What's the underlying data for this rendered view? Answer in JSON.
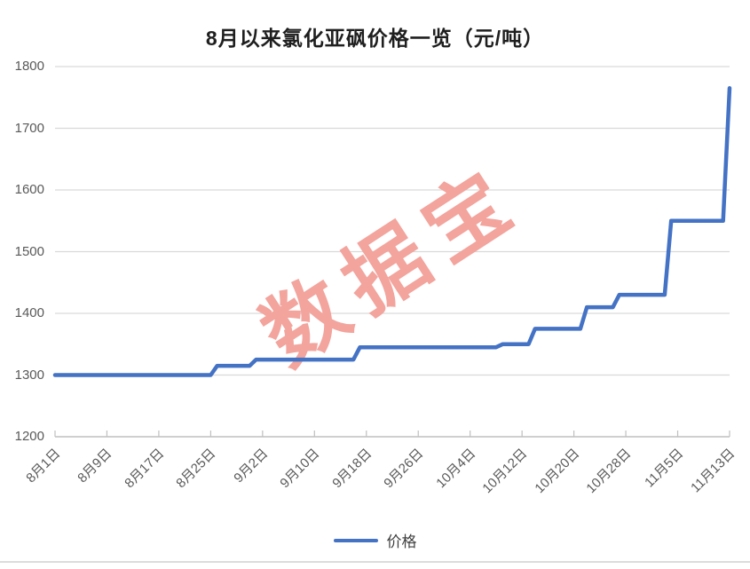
{
  "title": "8月以来氯化亚砜价格一览（元/吨）",
  "watermark": "数据宝",
  "legend": {
    "series_label": "价格"
  },
  "colors": {
    "line": "#4472C4",
    "grid": "#D9D9D9",
    "axis": "#BFBFBF",
    "axis_text": "#595959",
    "title_text": "#1F1F1F",
    "watermark_text": "#F2A49D"
  },
  "chart_data": {
    "type": "line",
    "title": "8月以来氯化亚砜价格一览（元/吨）",
    "xlabel": "",
    "ylabel": "",
    "ylim": [
      1200,
      1800
    ],
    "yticks": [
      1200,
      1300,
      1400,
      1500,
      1600,
      1700,
      1800
    ],
    "xticks": [
      "8月1日",
      "8月9日",
      "8月17日",
      "8月25日",
      "9月2日",
      "9月10日",
      "9月18日",
      "9月26日",
      "10月4日",
      "10月12日",
      "10月20日",
      "10月28日",
      "11月5日",
      "11月13日"
    ],
    "xtick_day_interval": 8,
    "x_total_days": 104,
    "grid": true,
    "legend_position": "bottom",
    "legend": [
      "价格"
    ],
    "series": [
      {
        "name": "价格",
        "step_points": [
          {
            "day": 0,
            "date": "8月1日",
            "value": 1300
          },
          {
            "day": 24,
            "date": "8月25日",
            "value": 1300
          },
          {
            "day": 25,
            "date": "8月26日",
            "value": 1315
          },
          {
            "day": 30,
            "date": "8月31日",
            "value": 1315
          },
          {
            "day": 31,
            "date": "9月1日",
            "value": 1325
          },
          {
            "day": 46,
            "date": "9月16日",
            "value": 1325
          },
          {
            "day": 47,
            "date": "9月17日",
            "value": 1345
          },
          {
            "day": 68,
            "date": "10月8日",
            "value": 1345
          },
          {
            "day": 69,
            "date": "10月9日",
            "value": 1350
          },
          {
            "day": 73,
            "date": "10月13日",
            "value": 1350
          },
          {
            "day": 74,
            "date": "10月14日",
            "value": 1375
          },
          {
            "day": 81,
            "date": "10月21日",
            "value": 1375
          },
          {
            "day": 82,
            "date": "10月22日",
            "value": 1410
          },
          {
            "day": 86,
            "date": "10月26日",
            "value": 1410
          },
          {
            "day": 87,
            "date": "10月27日",
            "value": 1430
          },
          {
            "day": 94,
            "date": "11月3日",
            "value": 1430
          },
          {
            "day": 95,
            "date": "11月4日",
            "value": 1550
          },
          {
            "day": 103,
            "date": "11月12日",
            "value": 1550
          },
          {
            "day": 104,
            "date": "11月13日",
            "value": 1765
          }
        ]
      }
    ]
  }
}
